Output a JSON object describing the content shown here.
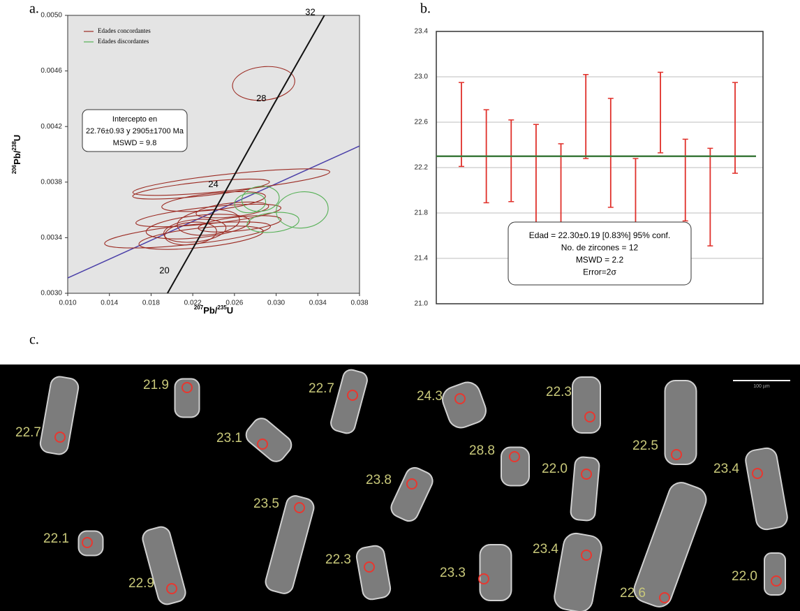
{
  "chart_data": [
    {
      "type": "concordia",
      "title": "a.",
      "xlabel_parts": [
        "207",
        "Pb/",
        "235",
        "U"
      ],
      "ylabel_parts": [
        "206",
        "Pb/",
        "238",
        "U"
      ],
      "xlim": [
        0.01,
        0.038
      ],
      "xticks": [
        {
          "value": 0.01,
          "label": "0.010"
        },
        0.014,
        0.018,
        0.022,
        0.026,
        {
          "value": 0.03,
          "label": "0.030"
        },
        0.034,
        0.038
      ],
      "ylim": [
        0.003,
        0.005
      ],
      "yticks": [
        {
          "value": 0.003,
          "label": "0.0030"
        },
        0.0034,
        0.0038,
        0.0042,
        0.0046,
        {
          "value": 0.005,
          "label": "0.0050"
        }
      ],
      "series": [
        {
          "name": "Edades concordantes",
          "color": "#9b2a22",
          "x": [
            0.0288,
            0.0257,
            0.0228,
            0.024,
            0.0235,
            0.0225,
            0.0215,
            0.0228,
            0.0222,
            0.0235,
            0.0218,
            0.0265,
            0.0258
          ],
          "y": [
            0.00451,
            0.0038,
            0.00375,
            0.00366,
            0.00356,
            0.00348,
            0.00342,
            0.0034,
            0.00345,
            0.00351,
            0.00343,
            0.0035,
            0.0036
          ],
          "x_err": [
            0.003,
            0.0095,
            0.0066,
            0.005,
            0.007,
            0.005,
            0.008,
            0.006,
            0.003,
            0.003,
            0.0025,
            0.004,
            0.0035
          ],
          "y_err": [
            0.00012,
            6e-05,
            5e-05,
            6e-05,
            6e-05,
            8e-05,
            7e-05,
            7e-05,
            8e-05,
            9e-05,
            8e-05,
            5e-05,
            5e-05
          ]
        },
        {
          "name": "Edades discordantes",
          "color": "#55b055",
          "x": [
            0.0275,
            0.0285,
            0.0325,
            0.0297
          ],
          "y": [
            0.00365,
            0.00368,
            0.0036,
            0.00351
          ],
          "x_err": [
            0.0015,
            0.0018,
            0.0025,
            0.0025
          ],
          "y_err": [
            7e-05,
            9e-05,
            0.00013,
            7e-05
          ]
        }
      ],
      "concordia": {
        "color": "#111111",
        "ages": [
          20,
          24,
          28,
          32
        ],
        "x": [
          0.0204,
          0.0251,
          0.0297,
          0.0344
        ],
        "y": [
          0.00311,
          0.00373,
          0.00435,
          0.00497
        ]
      },
      "discordia": {
        "color": "#4a3fa8",
        "x": [
          0.01,
          0.038
        ],
        "y": [
          0.00311,
          0.00406
        ]
      },
      "annotation": [
        "Intercepto en",
        "22.76±0.93 y 2905±1700 Ma",
        "MSWD = 9.8"
      ],
      "legend": "upper left"
    },
    {
      "type": "errorbar",
      "title": "b.",
      "ylim": [
        21.0,
        23.4
      ],
      "yticks": [
        {
          "value": 21.0,
          "label": "21.0"
        },
        21.4,
        21.8,
        22.2,
        22.6,
        {
          "value": 23.0,
          "label": "23.0"
        },
        23.4
      ],
      "grid": true,
      "color": "#e0302a",
      "low": [
        22.21,
        21.89,
        21.9,
        21.65,
        21.55,
        22.28,
        21.85,
        21.5,
        22.33,
        21.73,
        21.51,
        22.15
      ],
      "high": [
        22.95,
        22.71,
        22.62,
        22.58,
        22.41,
        23.02,
        22.81,
        22.28,
        23.04,
        22.45,
        22.37,
        22.95
      ],
      "mean": 22.3,
      "mean_color": "#3d7a3d",
      "annotation": [
        "Edad = 22.30±0.19  [0.83%]  95% conf.",
        "No. de zircones = 12",
        "MSWD = 2.2",
        "Error=2σ"
      ]
    }
  ],
  "micrograph": {
    "title": "c.",
    "scale_bar": "100 µm",
    "ages": [
      "22.7",
      "21.9",
      "23.1",
      "22.7",
      "24.3",
      "22.3",
      "22.5",
      "28.8",
      "22.0",
      "23.4",
      "23.8",
      "23.5",
      "22.1",
      "22.9",
      "22.3",
      "23.3",
      "23.4",
      "22.6",
      "22.0"
    ]
  }
}
